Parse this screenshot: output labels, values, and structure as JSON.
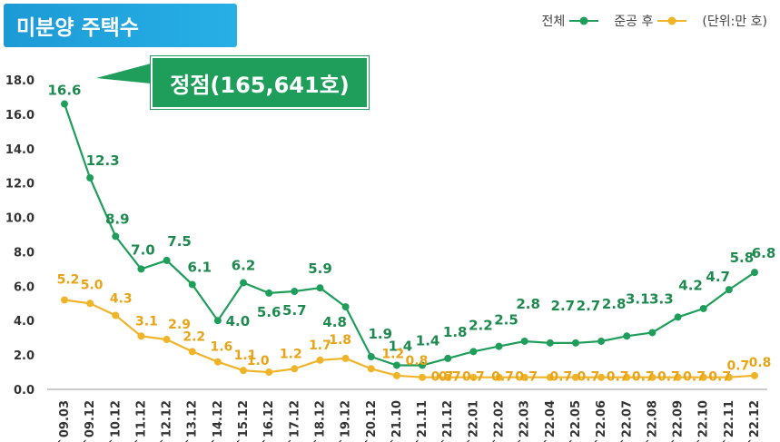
{
  "title": "미분양 주택수",
  "legend": {
    "series_a": "전체",
    "series_b": "준공 후",
    "unit": "(단위:만 호)"
  },
  "annotation": "정점(165,641호)",
  "colors": {
    "title_bg": "#1c9ad6",
    "series_a": "#1e9e5a",
    "series_a_label": "#1e8a4f",
    "series_b": "#f0b429",
    "series_b_label": "#e8a416",
    "annotation_bg": "#1e9e5a"
  },
  "chart_data": {
    "type": "line",
    "x": [
      "`09.03",
      "`09.12",
      "`10.12",
      "`11.12",
      "`12.12",
      "`13.12",
      "`14.12",
      "`15.12",
      "`16.12",
      "`17.12",
      "`18.12",
      "`19.12",
      "`20.12",
      "`21.10",
      "`21.11",
      "`21.12",
      "`22.01",
      "`22.02",
      "`22.03",
      "`22.04",
      "`22.05",
      "`22.06",
      "`22.07",
      "`22.08",
      "`22.09",
      "`22.10",
      "`22.11",
      "`22.12"
    ],
    "series": [
      {
        "name": "전체",
        "values": [
          16.6,
          12.3,
          8.9,
          7.0,
          7.5,
          6.1,
          4.0,
          6.2,
          5.6,
          5.7,
          5.9,
          4.8,
          1.9,
          1.4,
          1.4,
          1.8,
          2.2,
          2.5,
          2.8,
          2.7,
          2.7,
          2.8,
          3.1,
          3.3,
          4.2,
          4.7,
          5.8,
          6.8
        ],
        "labels": [
          "16.6",
          "12.3",
          "8.9",
          "7.0",
          "7.5",
          "6.1",
          "4.0",
          "6.2",
          "5.6",
          "5.7",
          "5.9",
          "4.8",
          "1.9",
          "1.4",
          "1.4",
          "1.8",
          "2.2",
          "2.5",
          "2.8",
          "2.7",
          "2.7",
          "2.8",
          "3.1",
          "3.3",
          "4.2",
          "4.7",
          "5.8",
          "6.8"
        ]
      },
      {
        "name": "준공 후",
        "values": [
          5.2,
          5.0,
          4.3,
          3.1,
          2.9,
          2.2,
          1.6,
          1.1,
          1.0,
          1.2,
          1.7,
          1.8,
          1.2,
          0.8,
          0.7,
          0.7,
          0.7,
          0.7,
          0.7,
          0.7,
          0.7,
          0.7,
          0.7,
          0.7,
          0.7,
          0.7,
          0.7,
          0.8
        ],
        "labels": [
          "5.2",
          "5.0",
          "4.3",
          "3.1",
          "2.9",
          "2.2",
          "1.6",
          "1.1",
          "1.0",
          "1.2",
          "1.7",
          "1.8",
          "1.2",
          "0.8",
          "0.7",
          "0.7",
          "0.7",
          "0.7",
          "0.7",
          "0.7",
          "0.7",
          "0.7",
          "0.7",
          "0.7",
          "0.7",
          "0.7",
          "0.7",
          "0.8"
        ]
      }
    ],
    "yticks": [
      "0.0",
      "2.0",
      "4.0",
      "6.0",
      "8.0",
      "10.0",
      "12.0",
      "14.0",
      "16.0",
      "18.0"
    ],
    "ylim": [
      0,
      18
    ],
    "grid": false,
    "legend_position": "top-right"
  }
}
